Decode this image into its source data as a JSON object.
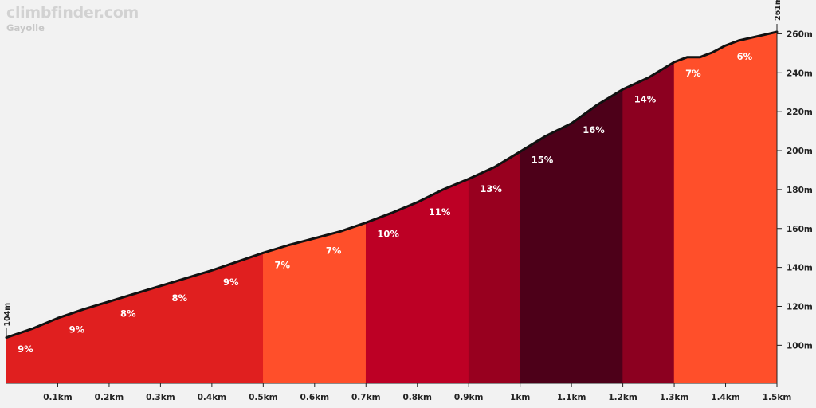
{
  "site_name": "climbfinder.com",
  "climb_name": "Gayolle",
  "chart_data": {
    "type": "area",
    "xlabel": "",
    "ylabel": "",
    "x_ticks": [
      {
        "km": 0.1,
        "label": "0.1km"
      },
      {
        "km": 0.2,
        "label": "0.2km"
      },
      {
        "km": 0.3,
        "label": "0.3km"
      },
      {
        "km": 0.4,
        "label": "0.4km"
      },
      {
        "km": 0.5,
        "label": "0.5km"
      },
      {
        "km": 0.6,
        "label": "0.6km"
      },
      {
        "km": 0.7,
        "label": "0.7km"
      },
      {
        "km": 0.8,
        "label": "0.8km"
      },
      {
        "km": 0.9,
        "label": "0.9km"
      },
      {
        "km": 1.0,
        "label": "1km"
      },
      {
        "km": 1.1,
        "label": "1.1km"
      },
      {
        "km": 1.2,
        "label": "1.2km"
      },
      {
        "km": 1.3,
        "label": "1.3km"
      },
      {
        "km": 1.4,
        "label": "1.4km"
      },
      {
        "km": 1.5,
        "label": "1.5km"
      }
    ],
    "y_ticks": [
      {
        "m": 100,
        "label": "100m"
      },
      {
        "m": 120,
        "label": "120m"
      },
      {
        "m": 140,
        "label": "140m"
      },
      {
        "m": 160,
        "label": "160m"
      },
      {
        "m": 180,
        "label": "180m"
      },
      {
        "m": 200,
        "label": "200m"
      },
      {
        "m": 220,
        "label": "220m"
      },
      {
        "m": 240,
        "label": "240m"
      },
      {
        "m": 260,
        "label": "260m"
      }
    ],
    "xlim": [
      0,
      1.5
    ],
    "ylim": [
      80.5,
      270
    ],
    "start_label": "104m",
    "end_label": "261m",
    "profile": [
      [
        0,
        104
      ],
      [
        0.05,
        108.5
      ],
      [
        0.1,
        114
      ],
      [
        0.15,
        118.5
      ],
      [
        0.2,
        122.5
      ],
      [
        0.25,
        126.5
      ],
      [
        0.3,
        130.5
      ],
      [
        0.35,
        134.5
      ],
      [
        0.4,
        138.5
      ],
      [
        0.45,
        143
      ],
      [
        0.5,
        147.5
      ],
      [
        0.55,
        151.5
      ],
      [
        0.6,
        155
      ],
      [
        0.65,
        158.5
      ],
      [
        0.7,
        163
      ],
      [
        0.75,
        168
      ],
      [
        0.8,
        173.5
      ],
      [
        0.85,
        180
      ],
      [
        0.9,
        185.5
      ],
      [
        0.95,
        191.5
      ],
      [
        1.0,
        199.5
      ],
      [
        1.05,
        207.5
      ],
      [
        1.1,
        214
      ],
      [
        1.15,
        223.5
      ],
      [
        1.2,
        231.5
      ],
      [
        1.25,
        237.5
      ],
      [
        1.3,
        245.5
      ],
      [
        1.325,
        248
      ],
      [
        1.35,
        248
      ],
      [
        1.375,
        250.5
      ],
      [
        1.4,
        254
      ],
      [
        1.425,
        256.5
      ],
      [
        1.45,
        258
      ],
      [
        1.475,
        259.5
      ],
      [
        1.5,
        261
      ]
    ],
    "segments": [
      {
        "from": 0.0,
        "to": 0.5,
        "color": "#e01f1f",
        "labels": [
          {
            "km": 0.025,
            "text": "9%"
          },
          {
            "km": 0.125,
            "text": "9%"
          },
          {
            "km": 0.225,
            "text": "8%"
          },
          {
            "km": 0.325,
            "text": "8%"
          },
          {
            "km": 0.425,
            "text": "9%"
          }
        ]
      },
      {
        "from": 0.5,
        "to": 0.7,
        "color": "#ff4f2a",
        "labels": [
          {
            "km": 0.525,
            "text": "7%"
          },
          {
            "km": 0.625,
            "text": "7%"
          }
        ]
      },
      {
        "from": 0.7,
        "to": 0.9,
        "color": "#bd0025",
        "labels": [
          {
            "km": 0.725,
            "text": "10%"
          },
          {
            "km": 0.825,
            "text": "11%"
          }
        ]
      },
      {
        "from": 0.9,
        "to": 1.0,
        "color": "#98001f",
        "labels": [
          {
            "km": 0.925,
            "text": "13%"
          }
        ]
      },
      {
        "from": 1.0,
        "to": 1.2,
        "color": "#4d0019",
        "labels": [
          {
            "km": 1.025,
            "text": "15%"
          },
          {
            "km": 1.125,
            "text": "16%"
          }
        ]
      },
      {
        "from": 1.2,
        "to": 1.3,
        "color": "#8c0020",
        "labels": [
          {
            "km": 1.225,
            "text": "14%"
          }
        ]
      },
      {
        "from": 1.3,
        "to": 1.5,
        "color": "#ff4f2a",
        "labels": [
          {
            "km": 1.325,
            "text": "7%"
          },
          {
            "km": 1.425,
            "text": "6%"
          }
        ]
      }
    ],
    "grid": false
  }
}
